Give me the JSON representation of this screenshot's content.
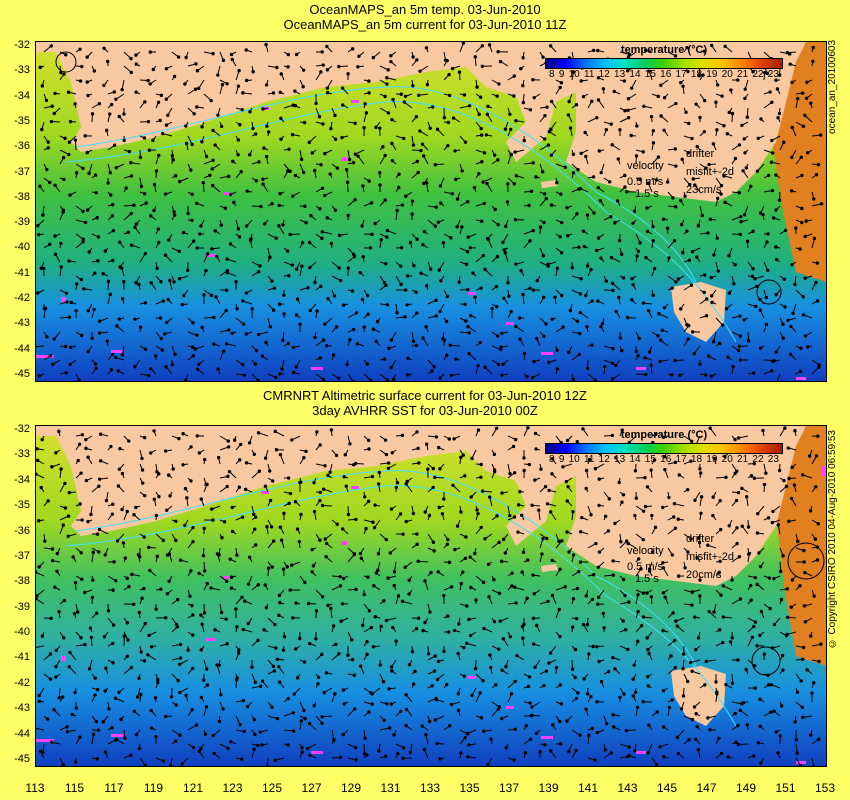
{
  "panel_top": {
    "title_line1": "OceanMAPS_an 5m temp. 03-Jun-2010",
    "title_line2": "OceanMAPS_an 5m current for 03-Jun-2010 11Z",
    "colorbar_title": "temperature (°C)",
    "velocity_label": "velocity",
    "velocity_scale": "0.5 m/s",
    "velocity_unit_note": "1.5 s",
    "drifter_label": "drifter",
    "misfit_label": "misfit+-2d",
    "misfit_value": "23cm/s",
    "side_label": "ocean_an_20100603"
  },
  "panel_bottom": {
    "title_line1": "CMRNRT Altimetric surface current for 03-Jun-2010 12Z",
    "title_line2": "3day AVHRR SST for 03-Jun-2010 00Z",
    "colorbar_title": "temperature (°C)",
    "velocity_label": "velocity",
    "velocity_scale": "0.5 m/s",
    "velocity_unit_note": "1.5 s",
    "drifter_label": "drifter",
    "misfit_label": "misfit+-2d",
    "misfit_value": "20cm/s",
    "side_label": "© Copyright CSIRO 2010   04-Aug-2010 06:59:53"
  },
  "colorbar_ticks": [
    "8",
    "9",
    "10",
    "11",
    "12",
    "13",
    "14",
    "15",
    "16",
    "17",
    "18",
    "19",
    "20",
    "21",
    "22",
    "23"
  ],
  "lat_ticks": [
    "-32",
    "-33",
    "-34",
    "-35",
    "-36",
    "-37",
    "-38",
    "-39",
    "-40",
    "-41",
    "-42",
    "-43",
    "-44",
    "-45"
  ],
  "lon_ticks": [
    "113",
    "115",
    "117",
    "119",
    "121",
    "123",
    "125",
    "127",
    "129",
    "131",
    "133",
    "135",
    "137",
    "139",
    "141",
    "143",
    "145",
    "147",
    "149",
    "151",
    "153"
  ],
  "colors": {
    "land": "#f8c8a0",
    "warm_water": "#d0e020",
    "mid_water": "#30c030",
    "cool_water": "#1890e0",
    "cold_water": "#1040c0",
    "drifter": "#ff40ff",
    "contour": "#40e0ff"
  }
}
